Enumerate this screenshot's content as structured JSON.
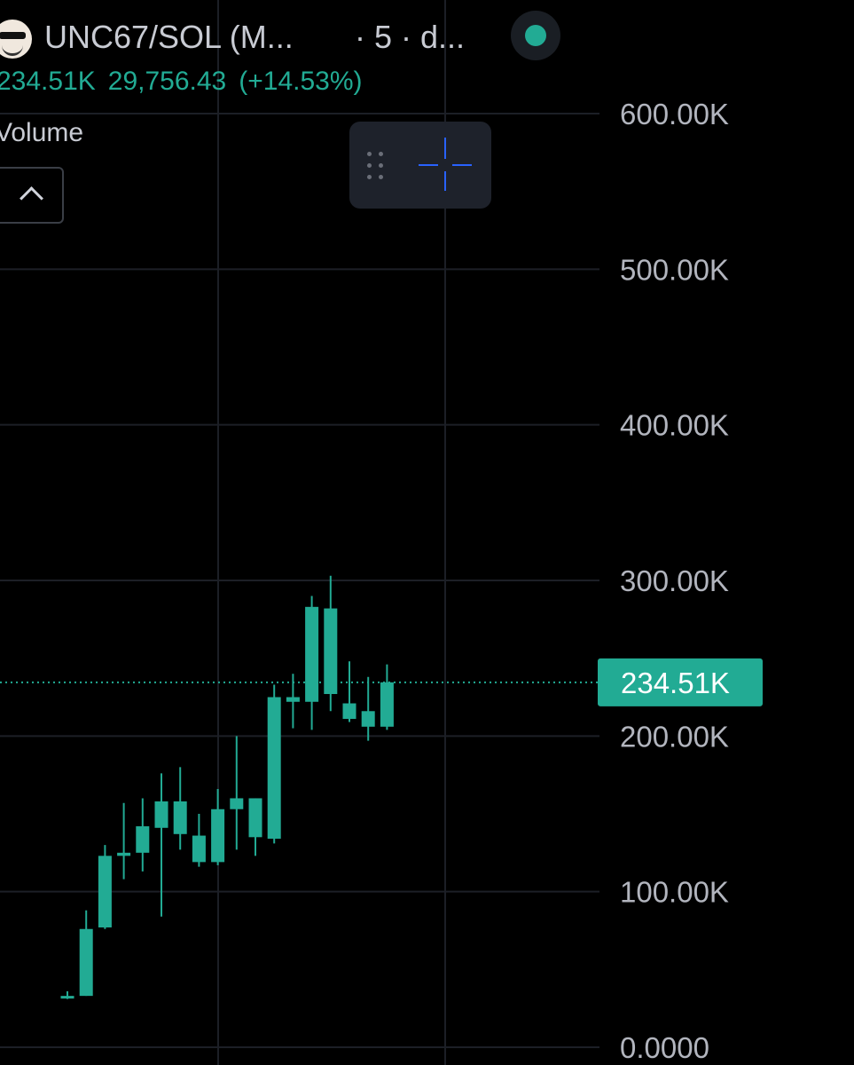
{
  "header": {
    "symbol": "UNC67/SOL (M...",
    "interval": "· 5 · d...",
    "status_color": "#22ab94"
  },
  "quote": {
    "close": "234.51K",
    "change": "29,756.43",
    "change_pct": "(+14.53%)"
  },
  "volume_label": "Volume",
  "toolbar": {
    "grip_icon": "drag-handle-icon",
    "crosshair_icon": "crosshair-icon"
  },
  "chart_data": {
    "type": "candlestick",
    "ylim": [
      0,
      600000
    ],
    "y_ticks": [
      {
        "value": 600000,
        "label": "600.00K"
      },
      {
        "value": 500000,
        "label": "500.00K"
      },
      {
        "value": 400000,
        "label": "400.00K"
      },
      {
        "value": 300000,
        "label": "300.00K"
      },
      {
        "value": 200000,
        "label": "200.00K"
      },
      {
        "value": 100000,
        "label": "100.00K"
      },
      {
        "value": 0,
        "label": "0.0000"
      }
    ],
    "last_price": {
      "value": 234510,
      "label": "234.51K"
    },
    "up_color": "#22ab94",
    "down_color": "#22ab94",
    "candles": [
      {
        "o": 33000,
        "h": 36000,
        "l": 31000,
        "c": 33000
      },
      {
        "o": 33000,
        "h": 88000,
        "l": 33000,
        "c": 76000
      },
      {
        "o": 77000,
        "h": 130000,
        "l": 76000,
        "c": 123000
      },
      {
        "o": 125000,
        "h": 157000,
        "l": 108000,
        "c": 123000
      },
      {
        "o": 125000,
        "h": 160000,
        "l": 113000,
        "c": 142000
      },
      {
        "o": 141000,
        "h": 176000,
        "l": 84000,
        "c": 158000
      },
      {
        "o": 158000,
        "h": 180000,
        "l": 127000,
        "c": 137000
      },
      {
        "o": 136000,
        "h": 150000,
        "l": 116000,
        "c": 119000
      },
      {
        "o": 119000,
        "h": 166000,
        "l": 117000,
        "c": 153000
      },
      {
        "o": 153000,
        "h": 200000,
        "l": 127000,
        "c": 160000
      },
      {
        "o": 160000,
        "h": 160000,
        "l": 123000,
        "c": 135000
      },
      {
        "o": 134000,
        "h": 233000,
        "l": 131000,
        "c": 225000
      },
      {
        "o": 225000,
        "h": 240000,
        "l": 205000,
        "c": 222000
      },
      {
        "o": 222000,
        "h": 290000,
        "l": 204000,
        "c": 283000
      },
      {
        "o": 282000,
        "h": 303000,
        "l": 216000,
        "c": 227000
      },
      {
        "o": 221000,
        "h": 248000,
        "l": 209000,
        "c": 211000
      },
      {
        "o": 216000,
        "h": 238000,
        "l": 197000,
        "c": 206000
      },
      {
        "o": 206000,
        "h": 246000,
        "l": 204000,
        "c": 234510
      }
    ]
  }
}
